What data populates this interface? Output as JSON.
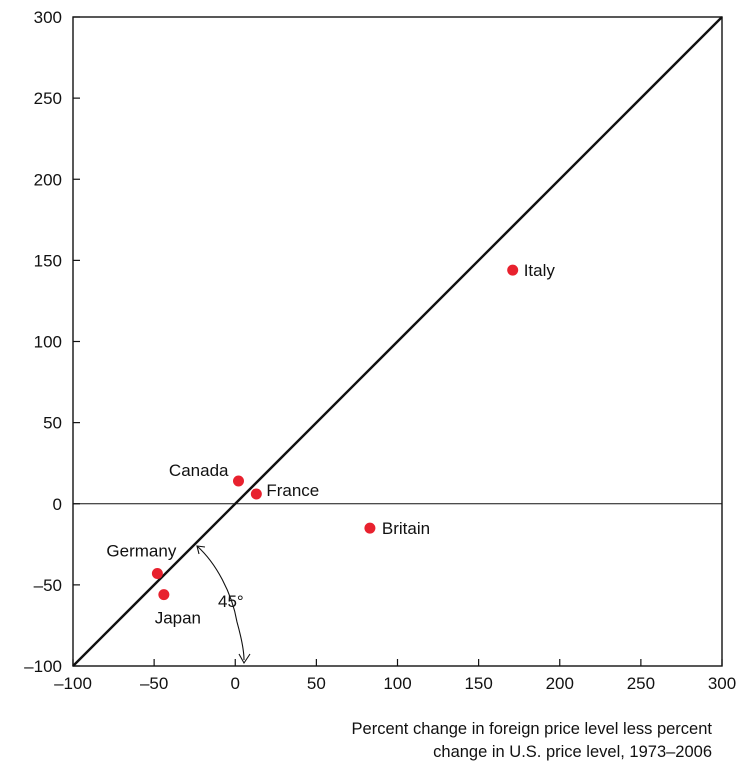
{
  "chart_data": {
    "type": "scatter",
    "title": "",
    "xlabel": [
      "Percent change in foreign price level less percent",
      "change in U.S. price level, 1973–2006"
    ],
    "ylabel": "",
    "xlim": [
      -100,
      300
    ],
    "ylim": [
      -100,
      300
    ],
    "x_ticks": [
      -100,
      -50,
      0,
      50,
      100,
      150,
      200,
      250,
      300
    ],
    "y_ticks": [
      -100,
      -50,
      0,
      50,
      100,
      150,
      200,
      250,
      300
    ],
    "x_tick_labels": [
      "–100",
      "–50",
      "0",
      "50",
      "100",
      "150",
      "200",
      "250",
      "300"
    ],
    "y_tick_labels": [
      "–100",
      "–50",
      "0",
      "50",
      "100",
      "150",
      "200",
      "250",
      "300"
    ],
    "grid": false,
    "reference_line": {
      "type": "45-degree",
      "from": [
        -100,
        -100
      ],
      "to": [
        300,
        300
      ]
    },
    "zero_line": 0,
    "annotation": {
      "text": "45°"
    },
    "point_color": "#e8212e",
    "points": [
      {
        "label": "Italy",
        "x": 171,
        "y": 144
      },
      {
        "label": "Canada",
        "x": 2,
        "y": 14
      },
      {
        "label": "France",
        "x": 13,
        "y": 6
      },
      {
        "label": "Britain",
        "x": 83,
        "y": -15
      },
      {
        "label": "Germany",
        "x": -48,
        "y": -43
      },
      {
        "label": "Japan",
        "x": -44,
        "y": -56
      }
    ]
  }
}
